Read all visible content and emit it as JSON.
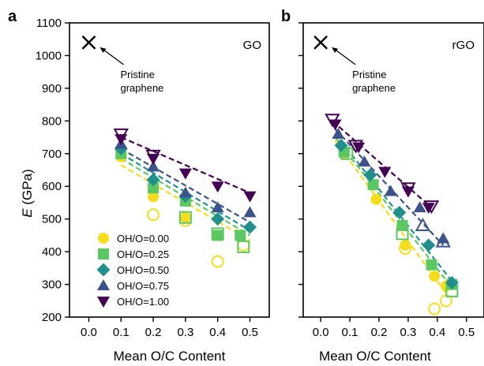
{
  "figure": {
    "ylabel_italic": "E",
    "ylabel_rest": " (GPa)"
  },
  "styles": {
    "OH/O=0.00": {
      "color": "#f4de1c",
      "marker": "circle"
    },
    "OH/O=0.25": {
      "color": "#5cc863",
      "marker": "square"
    },
    "OH/O=0.50": {
      "color": "#21908d",
      "marker": "diamond"
    },
    "OH/O=0.75": {
      "color": "#3b528b",
      "marker": "triangle-up"
    },
    "OH/O=1.00": {
      "color": "#440154",
      "marker": "triangle-down"
    }
  },
  "legend": {
    "placement": "lower-left",
    "entries": [
      "OH/O=0.00",
      "OH/O=0.25",
      "OH/O=0.50",
      "OH/O=0.75",
      "OH/O=1.00"
    ]
  },
  "chart_data": [
    {
      "type": "scatter",
      "panel_label": "a",
      "corner_title": "GO",
      "xlabel": "Mean O/C Content",
      "ylabel": "E (GPa)",
      "xlim": [
        -0.06,
        0.56
      ],
      "ylim": [
        200,
        1100
      ],
      "xticks": [
        0.0,
        0.1,
        0.2,
        0.3,
        0.4,
        0.5
      ],
      "yticks": [
        200,
        300,
        400,
        500,
        600,
        700,
        800,
        900,
        1000,
        1100
      ],
      "grid": false,
      "pristine": {
        "x": 0.0,
        "y": 1040,
        "label_line1": "Pristine",
        "label_line2": "graphene"
      },
      "series": [
        {
          "name": "OH/O=0.00",
          "filled": [
            [
              0.1,
              690
            ],
            [
              0.2,
              568
            ],
            [
              0.3,
              505
            ],
            [
              0.4,
              450
            ]
          ],
          "hollow": [
            [
              0.2,
              513
            ],
            [
              0.3,
              495
            ],
            [
              0.4,
              370
            ],
            [
              0.48,
              420
            ]
          ],
          "fit": [
            [
              0.1,
              665
            ],
            [
              0.5,
              435
            ]
          ]
        },
        {
          "name": "OH/O=0.25",
          "filled": [
            [
              0.1,
              700
            ],
            [
              0.2,
              595
            ],
            [
              0.3,
              555
            ],
            [
              0.4,
              450
            ],
            [
              0.47,
              450
            ]
          ],
          "hollow": [
            [
              0.3,
              505
            ],
            [
              0.4,
              455
            ],
            [
              0.48,
              415
            ]
          ],
          "fit": [
            [
              0.1,
              685
            ],
            [
              0.5,
              450
            ]
          ]
        },
        {
          "name": "OH/O=0.50",
          "filled": [
            [
              0.1,
              715
            ],
            [
              0.2,
              620
            ],
            [
              0.3,
              570
            ],
            [
              0.4,
              500
            ],
            [
              0.5,
              475
            ]
          ],
          "hollow": [],
          "fit": [
            [
              0.1,
              700
            ],
            [
              0.5,
              465
            ]
          ]
        },
        {
          "name": "OH/O=0.75",
          "filled": [
            [
              0.1,
              730
            ],
            [
              0.2,
              660
            ],
            [
              0.3,
              580
            ],
            [
              0.4,
              535
            ],
            [
              0.5,
              520
            ]
          ],
          "hollow": [],
          "fit": [
            [
              0.1,
              715
            ],
            [
              0.5,
              490
            ]
          ]
        },
        {
          "name": "OH/O=1.00",
          "filled": [
            [
              0.1,
              745
            ],
            [
              0.2,
              685
            ],
            [
              0.3,
              640
            ],
            [
              0.4,
              600
            ],
            [
              0.5,
              570
            ]
          ],
          "hollow": [
            [
              0.1,
              760
            ],
            [
              0.2,
              695
            ]
          ],
          "fit": [
            [
              0.1,
              750
            ],
            [
              0.5,
              580
            ]
          ]
        }
      ]
    },
    {
      "type": "scatter",
      "panel_label": "b",
      "corner_title": "rGO",
      "xlabel": "Mean O/C Content",
      "ylabel": "",
      "xlim": [
        -0.06,
        0.56
      ],
      "ylim": [
        200,
        1100
      ],
      "xticks": [
        0.0,
        0.1,
        0.2,
        0.3,
        0.4,
        0.5
      ],
      "yticks": [
        200,
        300,
        400,
        500,
        600,
        700,
        800,
        900,
        1000,
        1100
      ],
      "grid": false,
      "pristine": {
        "x": 0.0,
        "y": 1040,
        "label_line1": "Pristine",
        "label_line2": "graphene"
      },
      "series": [
        {
          "name": "OH/O=0.00",
          "filled": [
            [
              0.08,
              700
            ],
            [
              0.19,
              560
            ],
            [
              0.29,
              420
            ],
            [
              0.39,
              325
            ],
            [
              0.43,
              295
            ]
          ],
          "hollow": [
            [
              0.29,
              410
            ],
            [
              0.39,
              225
            ],
            [
              0.43,
              250
            ]
          ],
          "fit": [
            [
              0.05,
              740
            ],
            [
              0.44,
              260
            ]
          ]
        },
        {
          "name": "OH/O=0.25",
          "filled": [
            [
              0.08,
              705
            ],
            [
              0.18,
              605
            ],
            [
              0.28,
              480
            ],
            [
              0.38,
              360
            ],
            [
              0.45,
              300
            ]
          ],
          "hollow": [
            [
              0.28,
              455
            ],
            [
              0.45,
              280
            ],
            [
              0.09,
              700
            ]
          ],
          "fit": [
            [
              0.05,
              750
            ],
            [
              0.45,
              290
            ]
          ]
        },
        {
          "name": "OH/O=0.50",
          "filled": [
            [
              0.07,
              725
            ],
            [
              0.17,
              635
            ],
            [
              0.27,
              520
            ],
            [
              0.37,
              420
            ],
            [
              0.45,
              305
            ]
          ],
          "hollow": [],
          "fit": [
            [
              0.05,
              760
            ],
            [
              0.45,
              310
            ]
          ]
        },
        {
          "name": "OH/O=0.75",
          "filled": [
            [
              0.06,
              760
            ],
            [
              0.15,
              675
            ],
            [
              0.24,
              585
            ],
            [
              0.34,
              535
            ],
            [
              0.42,
              440
            ]
          ],
          "hollow": [
            [
              0.35,
              480
            ],
            [
              0.42,
              430
            ]
          ],
          "fit": [
            [
              0.05,
              775
            ],
            [
              0.42,
              420
            ]
          ]
        },
        {
          "name": "OH/O=1.00",
          "filled": [
            [
              0.05,
              790
            ],
            [
              0.13,
              720
            ],
            [
              0.22,
              645
            ],
            [
              0.3,
              585
            ],
            [
              0.37,
              535
            ]
          ],
          "hollow": [
            [
              0.04,
              805
            ],
            [
              0.12,
              725
            ],
            [
              0.3,
              595
            ],
            [
              0.38,
              540
            ]
          ],
          "fit": [
            [
              0.04,
              800
            ],
            [
              0.38,
              535
            ]
          ]
        }
      ]
    }
  ]
}
